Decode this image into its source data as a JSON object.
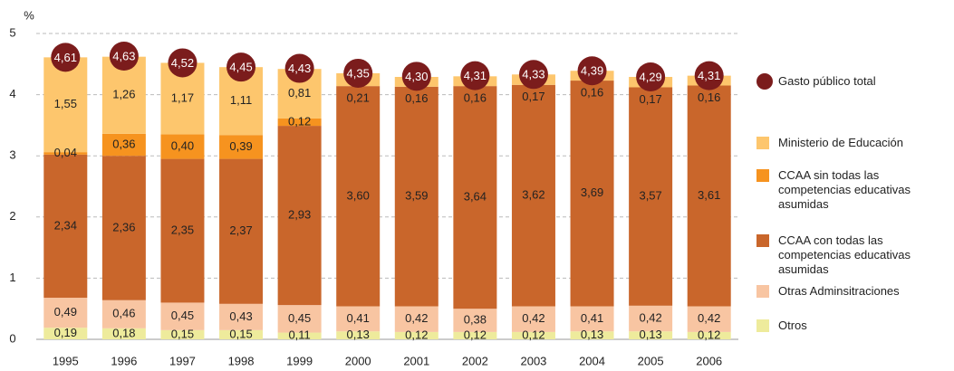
{
  "chart_data": {
    "type": "stacked_bar",
    "y_axis_label": "%",
    "categories": [
      "1995",
      "1996",
      "1997",
      "1998",
      "1999",
      "2000",
      "2001",
      "2002",
      "2003",
      "2004",
      "2005",
      "2006"
    ],
    "ylim": [
      0,
      5
    ],
    "yticks": [
      0,
      1,
      2,
      3,
      4,
      5
    ],
    "grid": true,
    "legend": "right",
    "series": [
      {
        "name": "Otros",
        "color": "#eeeb9c",
        "values": [
          0.19,
          0.18,
          0.15,
          0.15,
          0.11,
          0.13,
          0.12,
          0.12,
          0.12,
          0.13,
          0.13,
          0.12
        ],
        "value_labels": [
          "0,19",
          "0,18",
          "0,15",
          "0,15",
          "0,11",
          "0,13",
          "0,12",
          "0,12",
          "0,12",
          "0,13",
          "0,13",
          "0,12"
        ]
      },
      {
        "name": "Otras Adminsitraciones",
        "color": "#f8c5a2",
        "values": [
          0.49,
          0.46,
          0.45,
          0.43,
          0.45,
          0.41,
          0.42,
          0.38,
          0.42,
          0.41,
          0.42,
          0.42
        ],
        "value_labels": [
          "0,49",
          "0,46",
          "0,45",
          "0,43",
          "0,45",
          "0,41",
          "0,42",
          "0,38",
          "0,42",
          "0,41",
          "0,42",
          "0,42"
        ]
      },
      {
        "name": "CCAA con todas las competencias educativas asumidas",
        "color": "#c9662b",
        "values": [
          2.34,
          2.36,
          2.35,
          2.37,
          2.93,
          3.6,
          3.59,
          3.64,
          3.62,
          3.69,
          3.57,
          3.61
        ],
        "value_labels": [
          "2,34",
          "2,36",
          "2,35",
          "2,37",
          "2,93",
          "3,60",
          "3,59",
          "3,64",
          "3,62",
          "3,69",
          "3,57",
          "3,61"
        ]
      },
      {
        "name": "CCAA sin todas las competencias educativas asumidas",
        "color": "#f6931f",
        "values": [
          0.04,
          0.36,
          0.4,
          0.39,
          0.12,
          null,
          null,
          null,
          null,
          null,
          null,
          null
        ],
        "value_labels": [
          "0,04",
          "0,36",
          "0,40",
          "0,39",
          "0,12",
          null,
          null,
          null,
          null,
          null,
          null,
          null
        ]
      },
      {
        "name": "Ministerio de Educación",
        "color": "#fdc66d",
        "values": [
          1.55,
          1.26,
          1.17,
          1.11,
          0.81,
          0.21,
          0.16,
          0.16,
          0.17,
          0.16,
          0.17,
          0.16
        ],
        "value_labels": [
          "1,55",
          "1,26",
          "1,17",
          "1,11",
          "0,81",
          "0,21",
          "0,16",
          "0,16",
          "0,17",
          "0,16",
          "0,17",
          "0,16"
        ]
      }
    ],
    "total": {
      "name": "Gasto público total",
      "color": "#7b1c1c",
      "values": [
        4.61,
        4.63,
        4.52,
        4.45,
        4.43,
        4.35,
        4.3,
        4.31,
        4.33,
        4.39,
        4.29,
        4.31
      ],
      "value_labels": [
        "4,61",
        "4,63",
        "4,52",
        "4,45",
        "4,43",
        "4,35",
        "4,30",
        "4,31",
        "4,33",
        "4,39",
        "4,29",
        "4,31"
      ]
    }
  }
}
